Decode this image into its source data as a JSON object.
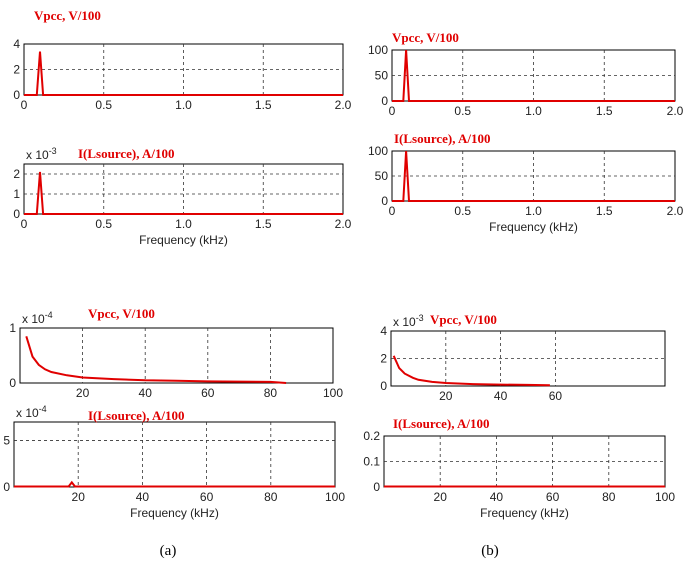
{
  "colors": {
    "series": "#e00000",
    "axes": "#000000",
    "grid": "#333333"
  },
  "captions": {
    "a": "(a)",
    "b": "(b)"
  },
  "chart_data": [
    {
      "type": "line",
      "title": "Vpcc, V/100",
      "xlabel": "",
      "xlim": [
        0,
        2
      ],
      "ylim": [
        0,
        4
      ],
      "xticks": [
        "0",
        "0.5",
        "1.0",
        "1.5",
        "2.0"
      ],
      "yticks": [
        "0",
        "2",
        "4"
      ],
      "exponent": "",
      "grid": true,
      "series": [
        {
          "x": [
            0,
            0.08,
            0.1,
            0.12,
            2.0
          ],
          "y": [
            0,
            0,
            3.4,
            0,
            0
          ]
        }
      ]
    },
    {
      "type": "line",
      "title": "I(Lsource), A/100",
      "xlabel": "Frequency (kHz)",
      "xlim": [
        0,
        2
      ],
      "ylim": [
        0,
        2.5
      ],
      "xticks": [
        "0",
        "0.5",
        "1.0",
        "1.5",
        "2.0"
      ],
      "yticks": [
        "0",
        "1",
        "2"
      ],
      "exponent": "x 10-3",
      "grid": true,
      "series": [
        {
          "x": [
            0,
            0.08,
            0.1,
            0.12,
            2.0
          ],
          "y": [
            0,
            0,
            2.1,
            0,
            0
          ]
        }
      ]
    },
    {
      "type": "line",
      "title": "Vpcc, V/100",
      "xlabel": "",
      "xlim": [
        0,
        2
      ],
      "ylim": [
        0,
        100
      ],
      "xticks": [
        "0",
        "0.5",
        "1.0",
        "1.5",
        "2.0"
      ],
      "yticks": [
        "0",
        "50",
        "100"
      ],
      "exponent": "",
      "grid": true,
      "series": [
        {
          "x": [
            0,
            0.08,
            0.1,
            0.12,
            2.0
          ],
          "y": [
            0,
            0,
            100,
            0,
            0
          ]
        }
      ]
    },
    {
      "type": "line",
      "title": "I(Lsource), A/100",
      "xlabel": "Frequency (kHz)",
      "xlim": [
        0,
        2
      ],
      "ylim": [
        0,
        100
      ],
      "xticks": [
        "0",
        "0.5",
        "1.0",
        "1.5",
        "2.0"
      ],
      "yticks": [
        "0",
        "50",
        "100"
      ],
      "exponent": "",
      "grid": true,
      "series": [
        {
          "x": [
            0,
            0.08,
            0.1,
            0.12,
            2.0
          ],
          "y": [
            0,
            0,
            100,
            0,
            0
          ]
        }
      ]
    },
    {
      "type": "line",
      "title": "Vpcc, V/100",
      "xlabel": "",
      "xlim": [
        0,
        100
      ],
      "ylim": [
        0,
        1
      ],
      "xticks": [
        "20",
        "40",
        "60",
        "80",
        "100"
      ],
      "yticks": [
        "0",
        "1"
      ],
      "exponent": "x 10-4",
      "grid": true,
      "series": [
        {
          "x": [
            2,
            4,
            6,
            8,
            10,
            15,
            20,
            30,
            40,
            50,
            60,
            70,
            80,
            85
          ],
          "y": [
            0.85,
            0.48,
            0.33,
            0.25,
            0.2,
            0.14,
            0.1,
            0.07,
            0.05,
            0.04,
            0.03,
            0.025,
            0.02,
            0
          ]
        }
      ]
    },
    {
      "type": "line",
      "title": "I(Lsource), A/100",
      "xlabel": "Frequency (kHz)",
      "xlim": [
        0,
        100
      ],
      "ylim": [
        0,
        7
      ],
      "xticks": [
        "20",
        "40",
        "60",
        "80",
        "100"
      ],
      "yticks": [
        "0",
        "5"
      ],
      "exponent": "x 10-4",
      "grid": true,
      "series": [
        {
          "x": [
            0,
            17,
            18,
            19,
            100
          ],
          "y": [
            0.05,
            0.05,
            0.5,
            0.05,
            0.05
          ]
        }
      ]
    },
    {
      "type": "line",
      "title": "Vpcc, V/100",
      "xlabel": "",
      "xlim": [
        0,
        100
      ],
      "ylim": [
        0,
        4
      ],
      "xticks": [
        "20",
        "40",
        "60"
      ],
      "yticks": [
        "0",
        "2",
        "4"
      ],
      "exponent": "x 10-3",
      "grid": true,
      "series": [
        {
          "x": [
            1,
            3,
            5,
            8,
            10,
            15,
            20,
            30,
            40,
            50,
            58
          ],
          "y": [
            2.2,
            1.3,
            0.9,
            0.6,
            0.45,
            0.3,
            0.22,
            0.14,
            0.1,
            0.08,
            0.06
          ]
        }
      ]
    },
    {
      "type": "line",
      "title": "I(Lsource), A/100",
      "xlabel": "Frequency (kHz)",
      "xlim": [
        0,
        100
      ],
      "ylim": [
        0,
        0.2
      ],
      "xticks": [
        "20",
        "40",
        "60",
        "80",
        "100"
      ],
      "yticks": [
        "0",
        "0.1",
        "0.2"
      ],
      "exponent": "",
      "grid": true,
      "series": [
        {
          "x": [
            0,
            100
          ],
          "y": [
            0.002,
            0.002
          ]
        }
      ]
    }
  ]
}
